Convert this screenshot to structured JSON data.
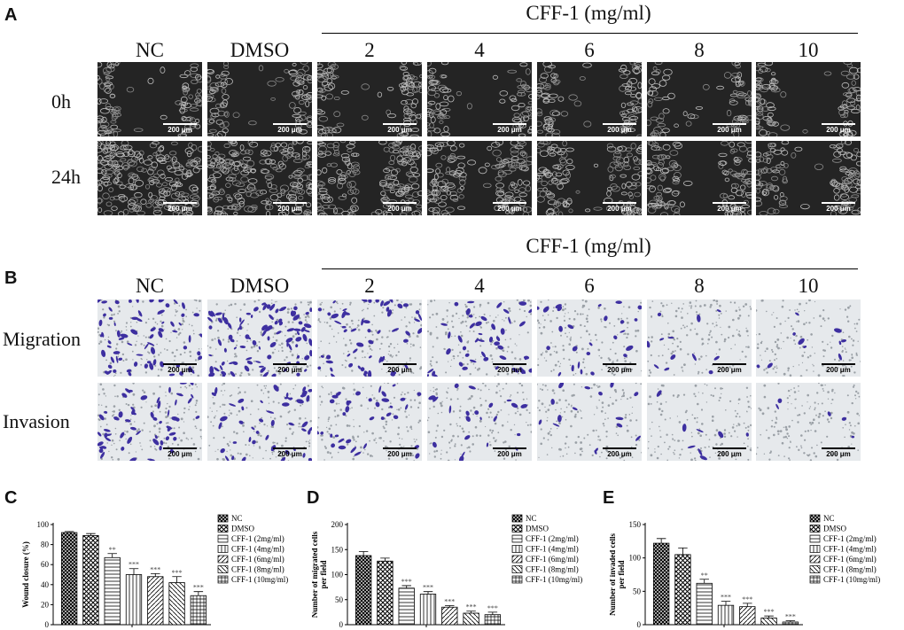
{
  "panels": {
    "A": "A",
    "B": "B",
    "C": "C",
    "D": "D",
    "E": "E"
  },
  "columns": [
    "NC",
    "DMSO",
    "2",
    "4",
    "6",
    "8",
    "10"
  ],
  "cff_header": "CFF-1 (mg/ml)",
  "panel_a_rows": [
    "0h",
    "24h"
  ],
  "panel_b_rows": [
    "Migration",
    "Invasion"
  ],
  "scale_bar_label": "200 μm",
  "cell_stain_color": "#3d2fa0",
  "chart_data": [
    {
      "type": "bar",
      "panel": "C",
      "ylabel": "Wound closure (%)",
      "ylim": [
        0,
        100
      ],
      "yticks": [
        0,
        20,
        40,
        60,
        80,
        100
      ],
      "categories": [
        "NC",
        "DMSO",
        "CFF-1 (2mg/ml)",
        "CFF-1 (4mg/ml)",
        "CFF-1 (6mg/ml)",
        "CFF-1 (8mg/ml)",
        "CFF-1 (10mg/ml)"
      ],
      "values": [
        92,
        89,
        67,
        50,
        48,
        42,
        29
      ],
      "errors": [
        1,
        2,
        4,
        6,
        3,
        6,
        4
      ],
      "significance": [
        "",
        "",
        "**",
        "***",
        "***",
        "***",
        "***"
      ],
      "legend_position": "right"
    },
    {
      "type": "bar",
      "panel": "D",
      "ylabel": "Number of migrated cells per field",
      "ylim": [
        0,
        200
      ],
      "yticks": [
        0,
        50,
        100,
        150,
        200
      ],
      "categories": [
        "NC",
        "DMSO",
        "CFF-1 (2mg/ml)",
        "CFF-1 (4mg/ml)",
        "CFF-1 (6mg/ml)",
        "CFF-1 (8mg/ml)",
        "CFF-1 (10mg/ml)"
      ],
      "values": [
        138,
        127,
        73,
        61,
        35,
        23,
        20
      ],
      "errors": [
        8,
        6,
        5,
        5,
        3,
        4,
        5
      ],
      "significance": [
        "",
        "",
        "***",
        "***",
        "***",
        "***",
        "***"
      ],
      "legend_position": "right"
    },
    {
      "type": "bar",
      "panel": "E",
      "ylabel": "Number of invaded cells per field",
      "ylim": [
        0,
        150
      ],
      "yticks": [
        0,
        50,
        100,
        150
      ],
      "categories": [
        "NC",
        "DMSO",
        "CFF-1 (2mg/ml)",
        "CFF-1 (4mg/ml)",
        "CFF-1 (6mg/ml)",
        "CFF-1 (8mg/ml)",
        "CFF-1 (10mg/ml)"
      ],
      "values": [
        122,
        105,
        62,
        29,
        27,
        10,
        4
      ],
      "errors": [
        7,
        10,
        6,
        6,
        5,
        3,
        2
      ],
      "significance": [
        "",
        "",
        "**",
        "***",
        "***",
        "***",
        "***"
      ],
      "legend_position": "right"
    }
  ]
}
